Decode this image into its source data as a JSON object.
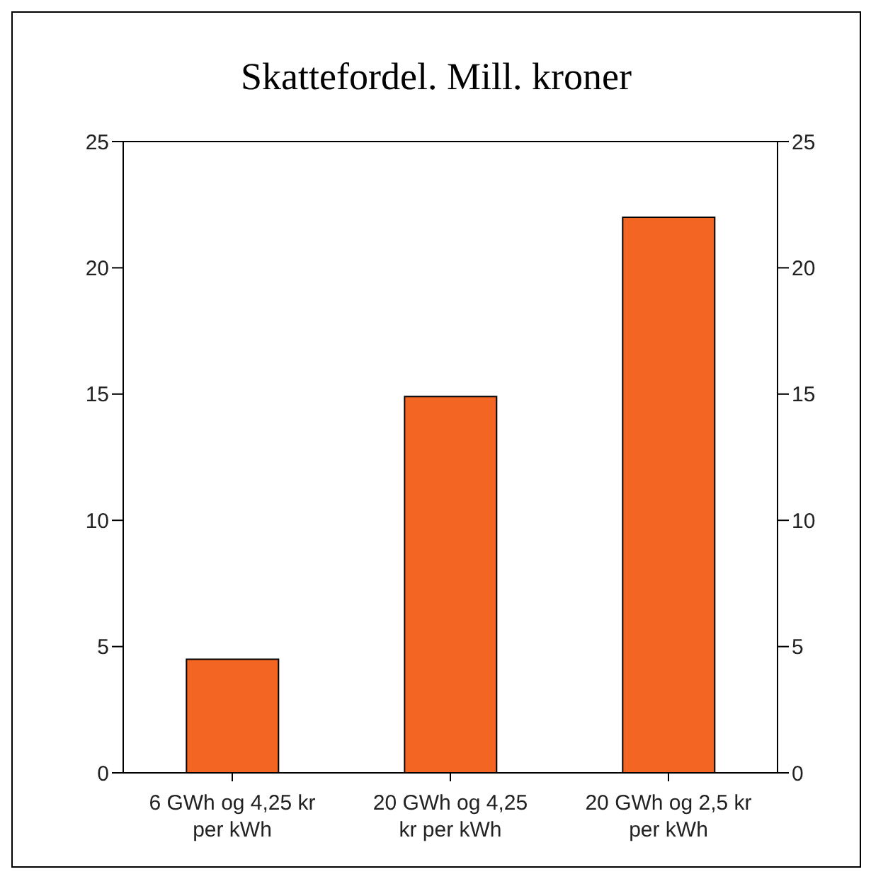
{
  "chart_data": {
    "type": "bar",
    "title": "Skattefordel. Mill. kroner",
    "categories": [
      "6 GWh og 4,25 kr per kWh",
      "20 GWh og 4,25 kr per kWh",
      "20 GWh og 2,5 kr per kWh"
    ],
    "values": [
      4.5,
      14.9,
      22
    ],
    "color": "#f26522",
    "ylim": [
      0,
      25
    ],
    "yticks": [
      0,
      5,
      10,
      15,
      20,
      25
    ],
    "y2lim": [
      0,
      25
    ],
    "y2ticks": [
      0,
      5,
      10,
      15,
      20,
      25
    ]
  }
}
